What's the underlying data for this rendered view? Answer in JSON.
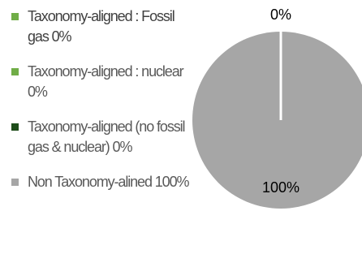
{
  "chart_data": {
    "type": "pie",
    "title": "",
    "series": [
      {
        "name": "",
        "values": [
          0,
          0,
          0,
          100
        ]
      }
    ],
    "categories": [
      "Taxonomy-aligned : Fossil gas 0%",
      "Taxonomy-aligned : nuclear 0%",
      "Taxonomy-aligned (no fossil gas & nuclear) 0%",
      "Non Taxonomy-alined 100%"
    ],
    "data_labels": [
      "0%",
      "100%"
    ],
    "colors": [
      "#70ad47",
      "#70ad47",
      "#1e4d1a",
      "#a6a6a6"
    ],
    "legend_position": "left"
  }
}
